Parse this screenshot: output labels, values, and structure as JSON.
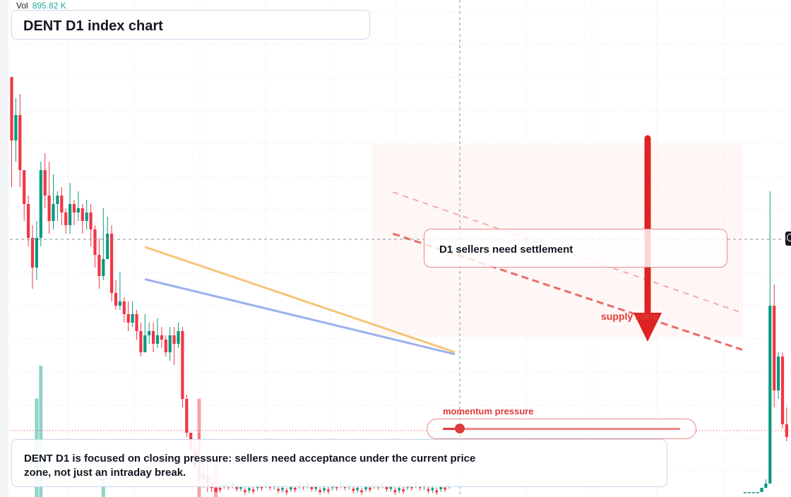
{
  "volume": {
    "label": "Vol",
    "value": "895.82 K"
  },
  "title": "DENT D1 index chart",
  "callout": "D1 sellers need settlement",
  "zone_label": "supply zone",
  "momentum": {
    "label": "momentum pressure",
    "level": 0.07
  },
  "note": "DENT D1 is focused on closing pressure: sellers need acceptance under the current price zone, not just an intraday break.",
  "colors": {
    "up": "#089981",
    "down": "#f23645",
    "upper_line": "#f7c47a",
    "lower_line": "#9bb0ee",
    "resistance": "#e55454",
    "arrow": "#dd2323"
  },
  "chart_data": {
    "type": "candlestick",
    "symbol": "DENT",
    "timeframe": "D1",
    "price_ylim": [
      0,
      100
    ],
    "volume_ylim": [
      0,
      100
    ],
    "grid": true,
    "candles": [
      [
        98,
        83,
        98,
        72,
        0
      ],
      [
        83,
        89,
        93,
        78,
        0
      ],
      [
        89,
        76,
        94,
        72,
        0
      ],
      [
        76,
        68,
        72,
        64,
        0
      ],
      [
        68,
        60,
        70,
        58,
        0
      ],
      [
        60,
        53,
        63,
        48,
        0
      ],
      [
        53,
        60,
        64,
        50,
        15
      ],
      [
        60,
        76,
        78,
        58,
        20
      ],
      [
        76,
        70,
        80,
        67,
        0
      ],
      [
        70,
        64,
        78,
        61,
        0
      ],
      [
        64,
        68,
        75,
        62,
        0
      ],
      [
        68,
        70,
        71,
        64,
        0
      ],
      [
        70,
        66,
        72,
        63,
        0
      ],
      [
        66,
        63,
        67,
        61,
        0
      ],
      [
        63,
        68,
        73,
        61,
        0
      ],
      [
        68,
        66,
        69,
        63,
        0
      ],
      [
        66,
        67,
        71,
        64,
        0
      ],
      [
        67,
        64,
        68,
        61,
        0
      ],
      [
        64,
        66,
        69,
        62,
        0
      ],
      [
        66,
        62,
        68,
        58,
        0
      ],
      [
        62,
        56,
        63,
        53,
        0
      ],
      [
        56,
        51,
        60,
        48,
        0
      ],
      [
        51,
        55,
        67,
        50,
        3
      ],
      [
        55,
        61,
        65,
        55,
        0
      ],
      [
        61,
        47,
        63,
        45,
        0
      ],
      [
        47,
        44,
        50,
        43,
        0
      ],
      [
        44,
        45,
        52,
        43,
        0
      ],
      [
        45,
        42,
        46,
        40,
        0
      ],
      [
        42,
        40,
        45,
        38,
        0
      ],
      [
        40,
        42,
        45,
        39,
        0
      ],
      [
        42,
        38,
        43,
        36,
        0
      ],
      [
        38,
        33,
        40,
        32,
        0
      ],
      [
        33,
        37,
        42,
        33,
        0
      ],
      [
        37,
        38,
        40,
        35,
        0
      ],
      [
        38,
        35,
        40,
        33,
        0
      ],
      [
        35,
        37,
        41,
        34,
        0
      ],
      [
        37,
        36,
        39,
        34,
        0
      ],
      [
        36,
        33,
        37,
        32,
        0
      ],
      [
        33,
        37,
        39,
        31,
        0
      ],
      [
        37,
        35,
        39,
        30,
        0
      ],
      [
        35,
        38,
        40,
        34,
        0
      ],
      [
        38,
        22,
        39,
        20,
        0
      ],
      [
        22,
        14,
        23,
        13,
        0
      ],
      [
        14,
        10,
        14,
        8,
        0
      ],
      [
        10,
        6,
        12,
        6,
        0
      ],
      [
        6,
        3,
        14,
        2,
        15
      ],
      [
        3,
        4,
        8,
        1,
        0
      ],
      [
        4,
        2,
        9,
        0,
        0
      ],
      [
        2,
        1,
        4,
        0,
        0
      ],
      [
        1,
        0,
        1,
        0,
        5
      ]
    ],
    "right_candles": [
      [
        0,
        0,
        0,
        0
      ],
      [
        0,
        0,
        0,
        0
      ],
      [
        0,
        0,
        0,
        0
      ],
      [
        0,
        0,
        0,
        0
      ],
      [
        0,
        1,
        1,
        0
      ],
      [
        1,
        2,
        3,
        1
      ],
      [
        2,
        44,
        71,
        2
      ],
      [
        44,
        24,
        49,
        20
      ],
      [
        24,
        32,
        33,
        22
      ],
      [
        32,
        16,
        33,
        15
      ],
      [
        16,
        13,
        20,
        12
      ]
    ],
    "trend_lines": [
      {
        "name": "upper",
        "from": [
          32,
          57.8
        ],
        "to": [
          106,
          33.1
        ]
      },
      {
        "name": "lower",
        "from": [
          32,
          50.2
        ],
        "to": [
          106,
          32.6
        ]
      }
    ],
    "resistance_lines": [
      {
        "name": "outer",
        "from": [
          72,
          70.8
        ],
        "to": [
          105,
          42.3
        ],
        "style": "dashed"
      },
      {
        "name": "inner",
        "from": [
          72,
          61.0
        ],
        "to": [
          105,
          33.6
        ],
        "style": "dashed"
      }
    ],
    "crosshair": {
      "x": 80,
      "price": 45.6
    },
    "current_price": 11.1
  }
}
